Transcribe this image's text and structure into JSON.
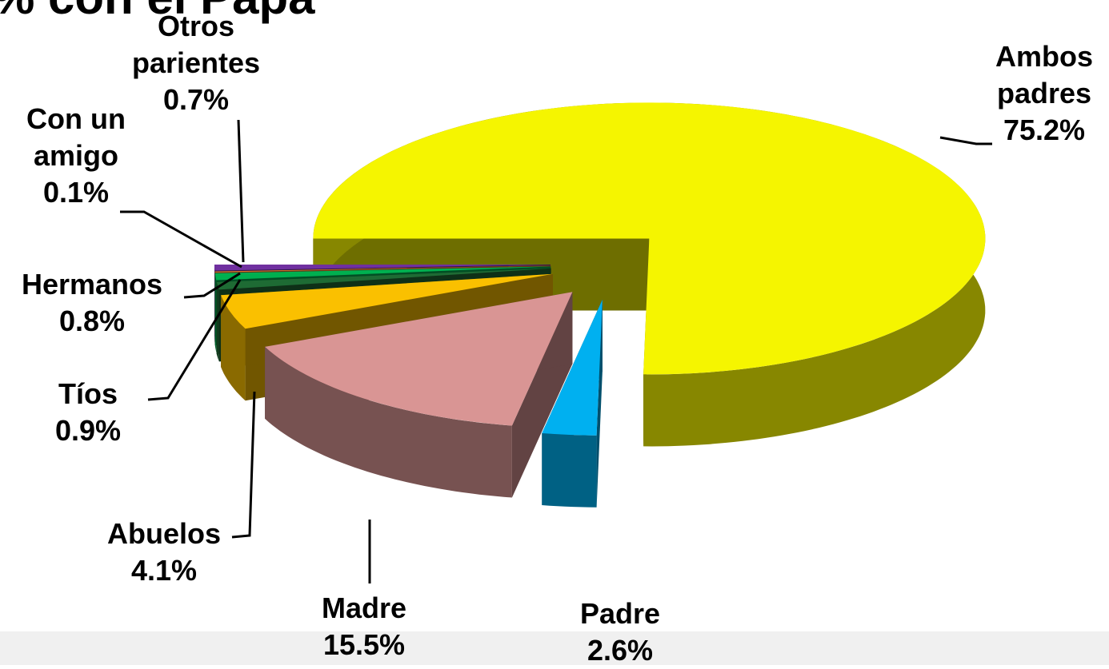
{
  "chart_data": {
    "type": "pie3d",
    "title": "% con el Papa",
    "categories": [
      "Ambos padres",
      "Padre",
      "Madre",
      "Abuelos",
      "Tíos",
      "Hermanos",
      "Con un amigo",
      "Otros parientes"
    ],
    "values": [
      75.2,
      2.6,
      15.5,
      4.1,
      0.9,
      0.8,
      0.1,
      0.7
    ],
    "value_labels": [
      "75.2%",
      "2.6%",
      "15.5%",
      "4.1%",
      "0.9%",
      "0.8%",
      "0.1%",
      "0.7%"
    ],
    "colors": [
      "#f5f500",
      "#00b0f0",
      "#d99594",
      "#fac000",
      "#1e6b34",
      "#00b050",
      "#e07b30",
      "#7030a0"
    ]
  }
}
